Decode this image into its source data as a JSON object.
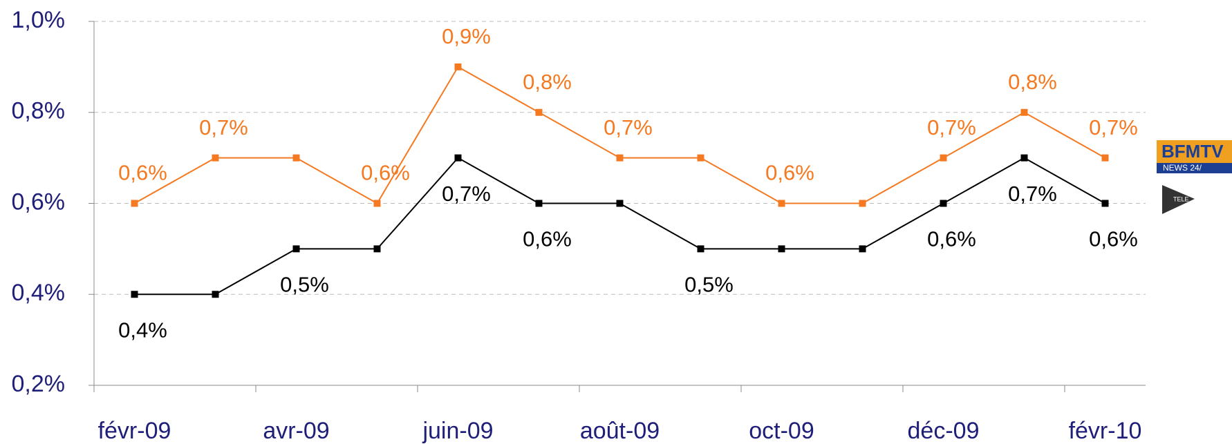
{
  "chart_data": {
    "type": "line",
    "categories": [
      "févr-09",
      null,
      "avr-09",
      null,
      "juin-09",
      null,
      "août-09",
      null,
      "oct-09",
      null,
      "déc-09",
      null,
      "févr-10"
    ],
    "series": [
      {
        "color": "#f47920",
        "values": [
          0.6,
          0.7,
          0.7,
          0.6,
          0.9,
          0.8,
          0.7,
          0.7,
          0.6,
          0.6,
          0.7,
          0.8,
          0.7
        ],
        "value_labels": [
          "0,6%",
          "0,7%",
          null,
          "0,6%",
          "0,9%",
          "0,8%",
          "0,7%",
          null,
          "0,6%",
          null,
          "0,7%",
          "0,8%",
          "0,7%"
        ]
      },
      {
        "color": "#000000",
        "values": [
          0.4,
          0.4,
          0.5,
          0.5,
          0.7,
          0.6,
          0.6,
          0.5,
          0.5,
          0.5,
          0.6,
          0.7,
          0.6
        ],
        "value_labels": [
          "0,4%",
          null,
          "0,5%",
          null,
          "0,7%",
          "0,6%",
          null,
          "0,5%",
          null,
          null,
          "0,6%",
          "0,7%",
          "0,6%"
        ]
      }
    ],
    "ylim": [
      0.2,
      1.0
    ],
    "yticks": [
      {
        "value": 0.2,
        "label": "0,2%"
      },
      {
        "value": 0.4,
        "label": "0,4%"
      },
      {
        "value": 0.6,
        "label": "0,6%"
      },
      {
        "value": 0.8,
        "label": "0,8%"
      },
      {
        "value": 1.0,
        "label": "1,0%"
      }
    ],
    "grid": true,
    "logos": [
      "BFMTV",
      "NEWS 24/",
      "TELE"
    ]
  }
}
